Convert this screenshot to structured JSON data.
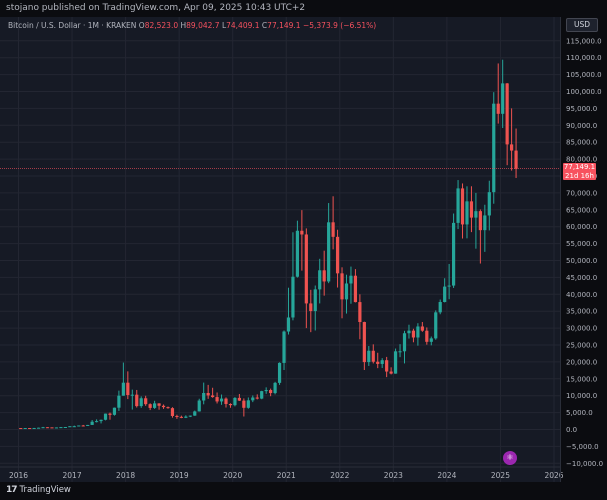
{
  "publish_line": "stojano published on TradingView.com, Apr 09, 2025 10:43 UTC+2",
  "legend": {
    "symbol": "Bitcoin / U.S. Dollar · 1M · KRAKEN",
    "o_label": "O",
    "o_value": "82,523.0",
    "h_label": "H",
    "h_value": "89,042.7",
    "l_label": "L",
    "l_value": "74,409.1",
    "c_label": "C",
    "c_value": "77,149.1",
    "change": "−5,373.9 (−6.51%)"
  },
  "currency": "USD",
  "price_badge": {
    "price": "77,149.1",
    "countdown": "21d 16h"
  },
  "brand": "TradingView",
  "colors": {
    "up": "#26a69a",
    "down": "#ef5350",
    "background": "#161a25",
    "grid": "#232632",
    "axis_text": "#b2b5be",
    "badge": "#f7525f"
  },
  "chart_data": {
    "type": "candlestick",
    "title": "Bitcoin / U.S. Dollar · 1M · KRAKEN",
    "interval": "monthly",
    "y_ticks": [
      115000,
      110000,
      105000,
      100000,
      95000,
      90000,
      85000,
      80000,
      75000,
      70000,
      65000,
      60000,
      55000,
      50000,
      45000,
      40000,
      35000,
      30000,
      25000,
      20000,
      15000,
      10000,
      5000,
      0,
      -5000,
      -10000
    ],
    "y_tick_labels": [
      "115,000.0",
      "110,000.0",
      "105,000.0",
      "100,000.0",
      "95,000.0",
      "90,000.0",
      "85,000.0",
      "80,000.0",
      "75,000.0",
      "70,000.0",
      "65,000.0",
      "60,000.0",
      "55,000.0",
      "50,000.0",
      "45,000.0",
      "40,000.0",
      "35,000.0",
      "30,000.0",
      "25,000.0",
      "20,000.0",
      "15,000.0",
      "10,000.0",
      "5,000.0",
      "0.0",
      "−5,000.0",
      "−10,000.0"
    ],
    "x_tick_labels": [
      "2016",
      "2017",
      "2018",
      "2019",
      "2020",
      "2021",
      "2022",
      "2023",
      "2024",
      "2025",
      "2026"
    ],
    "ylim": [
      -11000,
      117000
    ],
    "grid": true,
    "last_price": 77149.1,
    "candles": [
      [
        "2016-01",
        430,
        440,
        350,
        370
      ],
      [
        "2016-02",
        370,
        440,
        360,
        435
      ],
      [
        "2016-03",
        435,
        440,
        400,
        415
      ],
      [
        "2016-04",
        415,
        470,
        410,
        450
      ],
      [
        "2016-05",
        450,
        550,
        440,
        530
      ],
      [
        "2016-06",
        530,
        780,
        520,
        670
      ],
      [
        "2016-07",
        670,
        700,
        600,
        625
      ],
      [
        "2016-08",
        625,
        630,
        500,
        575
      ],
      [
        "2016-09",
        575,
        620,
        570,
        610
      ],
      [
        "2016-10",
        610,
        720,
        600,
        700
      ],
      [
        "2016-11",
        700,
        750,
        690,
        740
      ],
      [
        "2016-12",
        740,
        980,
        740,
        965
      ],
      [
        "2017-01",
        965,
        1150,
        750,
        970
      ],
      [
        "2017-02",
        970,
        1200,
        920,
        1190
      ],
      [
        "2017-03",
        1190,
        1350,
        890,
        1080
      ],
      [
        "2017-04",
        1080,
        1350,
        1070,
        1350
      ],
      [
        "2017-05",
        1350,
        2800,
        1350,
        2300
      ],
      [
        "2017-06",
        2300,
        3000,
        2100,
        2480
      ],
      [
        "2017-07",
        2480,
        2930,
        1800,
        2875
      ],
      [
        "2017-08",
        2875,
        4700,
        2700,
        4700
      ],
      [
        "2017-09",
        4700,
        5000,
        2900,
        4340
      ],
      [
        "2017-10",
        4340,
        6500,
        4100,
        6450
      ],
      [
        "2017-11",
        6450,
        11500,
        5500,
        10000
      ],
      [
        "2017-12",
        10000,
        19800,
        10000,
        13850
      ],
      [
        "2018-01",
        13850,
        17200,
        9000,
        10200
      ],
      [
        "2018-02",
        10200,
        11800,
        5900,
        10300
      ],
      [
        "2018-03",
        10300,
        11700,
        6500,
        6920
      ],
      [
        "2018-04",
        6920,
        9800,
        6400,
        9240
      ],
      [
        "2018-05",
        9240,
        9980,
        7000,
        7500
      ],
      [
        "2018-06",
        7500,
        7750,
        5750,
        6390
      ],
      [
        "2018-07",
        6390,
        8500,
        6100,
        7730
      ],
      [
        "2018-08",
        7730,
        7750,
        5850,
        7020
      ],
      [
        "2018-09",
        7020,
        7400,
        6100,
        6620
      ],
      [
        "2018-10",
        6620,
        6800,
        6150,
        6320
      ],
      [
        "2018-11",
        6320,
        6600,
        3500,
        4000
      ],
      [
        "2018-12",
        4000,
        4380,
        3150,
        3740
      ],
      [
        "2019-01",
        3740,
        4100,
        3350,
        3460
      ],
      [
        "2019-02",
        3460,
        4200,
        3380,
        3820
      ],
      [
        "2019-03",
        3820,
        4140,
        3680,
        4100
      ],
      [
        "2019-04",
        4100,
        5600,
        4040,
        5350
      ],
      [
        "2019-05",
        5350,
        9100,
        5300,
        8580
      ],
      [
        "2019-06",
        8580,
        13880,
        7450,
        10800
      ],
      [
        "2019-07",
        10800,
        13200,
        9070,
        10080
      ],
      [
        "2019-08",
        10080,
        12350,
        9400,
        9600
      ],
      [
        "2019-09",
        9600,
        10950,
        7700,
        8300
      ],
      [
        "2019-10",
        8300,
        10350,
        7300,
        9150
      ],
      [
        "2019-11",
        9150,
        9500,
        6500,
        7550
      ],
      [
        "2019-12",
        7550,
        7750,
        6430,
        7200
      ],
      [
        "2020-01",
        7200,
        9580,
        6850,
        9350
      ],
      [
        "2020-02",
        9350,
        10500,
        8450,
        8540
      ],
      [
        "2020-03",
        8540,
        9200,
        3850,
        6420
      ],
      [
        "2020-04",
        6420,
        9480,
        6150,
        8630
      ],
      [
        "2020-05",
        8630,
        10080,
        8100,
        9460
      ],
      [
        "2020-06",
        9460,
        10400,
        8900,
        9140
      ],
      [
        "2020-07",
        9140,
        11450,
        8960,
        11350
      ],
      [
        "2020-08",
        11350,
        12470,
        10550,
        11680
      ],
      [
        "2020-09",
        11680,
        12100,
        9850,
        10780
      ],
      [
        "2020-10",
        10780,
        14100,
        10400,
        13800
      ],
      [
        "2020-11",
        13800,
        19870,
        13200,
        19700
      ],
      [
        "2020-12",
        19700,
        29300,
        17600,
        28990
      ],
      [
        "2021-01",
        28990,
        41950,
        28100,
        33140
      ],
      [
        "2021-02",
        33140,
        58350,
        32300,
        45200
      ],
      [
        "2021-03",
        45200,
        61780,
        44950,
        58800
      ],
      [
        "2021-04",
        58800,
        64900,
        47000,
        57700
      ],
      [
        "2021-05",
        57700,
        59500,
        30000,
        37300
      ],
      [
        "2021-06",
        37300,
        41330,
        28800,
        35040
      ],
      [
        "2021-07",
        35040,
        42600,
        29300,
        41460
      ],
      [
        "2021-08",
        41460,
        50500,
        37300,
        47100
      ],
      [
        "2021-09",
        47100,
        52900,
        39600,
        43800
      ],
      [
        "2021-10",
        43800,
        67000,
        43300,
        61300
      ],
      [
        "2021-11",
        61300,
        69000,
        53300,
        57000
      ],
      [
        "2021-12",
        57000,
        59100,
        42000,
        46200
      ],
      [
        "2022-01",
        46200,
        47990,
        32900,
        38500
      ],
      [
        "2022-02",
        38500,
        45800,
        34300,
        43200
      ],
      [
        "2022-03",
        43200,
        48200,
        37200,
        45500
      ],
      [
        "2022-04",
        45500,
        47450,
        37600,
        37700
      ],
      [
        "2022-05",
        37700,
        40000,
        26700,
        31800
      ],
      [
        "2022-06",
        31800,
        31900,
        17600,
        19950
      ],
      [
        "2022-07",
        19950,
        24700,
        18800,
        23300
      ],
      [
        "2022-08",
        23300,
        25200,
        19550,
        20050
      ],
      [
        "2022-09",
        20050,
        22700,
        18150,
        19400
      ],
      [
        "2022-10",
        19400,
        21100,
        18200,
        20500
      ],
      [
        "2022-11",
        20500,
        21480,
        15500,
        17150
      ],
      [
        "2022-12",
        17150,
        18400,
        16300,
        16530
      ],
      [
        "2023-01",
        16530,
        23950,
        16500,
        23130
      ],
      [
        "2023-02",
        23130,
        25250,
        21400,
        23140
      ],
      [
        "2023-03",
        23140,
        29200,
        19550,
        28480
      ],
      [
        "2023-04",
        28480,
        31000,
        26900,
        29250
      ],
      [
        "2023-05",
        29250,
        29800,
        25800,
        27220
      ],
      [
        "2023-06",
        27220,
        31450,
        24800,
        30480
      ],
      [
        "2023-07",
        30480,
        31800,
        28900,
        29230
      ],
      [
        "2023-08",
        29230,
        30200,
        25100,
        25940
      ],
      [
        "2023-09",
        25940,
        27500,
        24900,
        26960
      ],
      [
        "2023-10",
        26960,
        35250,
        26560,
        34660
      ],
      [
        "2023-11",
        34660,
        38450,
        34100,
        37720
      ],
      [
        "2023-12",
        37720,
        44750,
        37600,
        42280
      ],
      [
        "2024-01",
        42280,
        48980,
        38550,
        42580
      ],
      [
        "2024-02",
        42580,
        63900,
        41880,
        61130
      ],
      [
        "2024-03",
        61130,
        73800,
        59300,
        71330
      ],
      [
        "2024-04",
        71330,
        72800,
        56500,
        60670
      ],
      [
        "2024-05",
        60670,
        71950,
        56550,
        67500
      ],
      [
        "2024-06",
        67500,
        71960,
        58400,
        62690
      ],
      [
        "2024-07",
        62690,
        70000,
        53500,
        64600
      ],
      [
        "2024-08",
        64600,
        65100,
        49100,
        58980
      ],
      [
        "2024-09",
        58980,
        66500,
        52550,
        63330
      ],
      [
        "2024-10",
        63330,
        73600,
        58900,
        70220
      ],
      [
        "2024-11",
        70220,
        99800,
        66800,
        96400
      ],
      [
        "2024-12",
        96400,
        108300,
        90500,
        93400
      ],
      [
        "2025-01",
        93400,
        109400,
        89200,
        102400
      ],
      [
        "2025-02",
        102400,
        102500,
        78200,
        84350
      ],
      [
        "2025-03",
        84350,
        95000,
        76600,
        82523
      ],
      [
        "2025-04",
        82523,
        89043,
        74409,
        77149
      ]
    ]
  }
}
